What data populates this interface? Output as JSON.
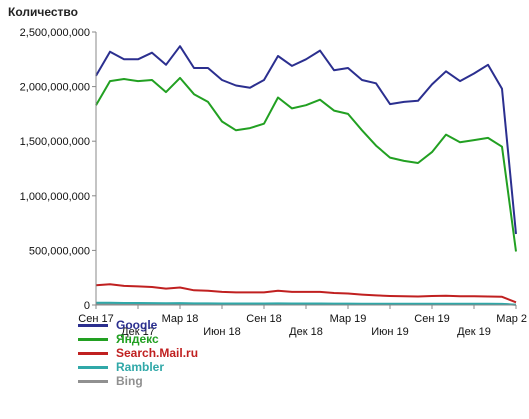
{
  "chart_data": {
    "type": "line",
    "ylabel": "Количество",
    "ylim": [
      0,
      2500000000
    ],
    "yticks": [
      {
        "value": 0,
        "label": "0"
      },
      {
        "value": 500000000,
        "label": "500,000,000"
      },
      {
        "value": 1000000000,
        "label": "1,000,000,000"
      },
      {
        "value": 1500000000,
        "label": "1,500,000,000"
      },
      {
        "value": 2000000000,
        "label": "2,000,000,000"
      },
      {
        "value": 2500000000,
        "label": "2,500,000,000"
      }
    ],
    "x": [
      "2017-09",
      "2017-10",
      "2017-11",
      "2017-12",
      "2018-01",
      "2018-02",
      "2018-03",
      "2018-04",
      "2018-05",
      "2018-06",
      "2018-07",
      "2018-08",
      "2018-09",
      "2018-10",
      "2018-11",
      "2018-12",
      "2019-01",
      "2019-02",
      "2019-03",
      "2019-04",
      "2019-05",
      "2019-06",
      "2019-07",
      "2019-08",
      "2019-09",
      "2019-10",
      "2019-11",
      "2019-12",
      "2020-01",
      "2020-02",
      "2020-03"
    ],
    "xticks": [
      {
        "index": 0,
        "label": "Сен 17",
        "row": 0
      },
      {
        "index": 3,
        "label": "Дек 17",
        "row": 1
      },
      {
        "index": 6,
        "label": "Мар 18",
        "row": 0
      },
      {
        "index": 9,
        "label": "Июн 18",
        "row": 1
      },
      {
        "index": 12,
        "label": "Сен 18",
        "row": 0
      },
      {
        "index": 15,
        "label": "Дек 18",
        "row": 1
      },
      {
        "index": 18,
        "label": "Мар 19",
        "row": 0
      },
      {
        "index": 21,
        "label": "Июн 19",
        "row": 1
      },
      {
        "index": 24,
        "label": "Сен 19",
        "row": 0
      },
      {
        "index": 27,
        "label": "Дек 19",
        "row": 1
      },
      {
        "index": 30,
        "label": "Мар 2",
        "row": 0
      }
    ],
    "series": [
      {
        "name": "Google",
        "color": "#2b2f8f",
        "values": [
          2100000000,
          2320000000,
          2250000000,
          2250000000,
          2310000000,
          2200000000,
          2370000000,
          2170000000,
          2170000000,
          2060000000,
          2010000000,
          1990000000,
          2060000000,
          2280000000,
          2190000000,
          2250000000,
          2330000000,
          2150000000,
          2170000000,
          2060000000,
          2030000000,
          1840000000,
          1860000000,
          1870000000,
          2020000000,
          2140000000,
          2050000000,
          2120000000,
          2200000000,
          1980000000,
          650000000
        ]
      },
      {
        "name": "Яндекс",
        "color": "#22a022",
        "values": [
          1830000000,
          2050000000,
          2070000000,
          2050000000,
          2060000000,
          1950000000,
          2080000000,
          1930000000,
          1860000000,
          1680000000,
          1600000000,
          1620000000,
          1660000000,
          1900000000,
          1800000000,
          1830000000,
          1880000000,
          1780000000,
          1750000000,
          1600000000,
          1460000000,
          1350000000,
          1320000000,
          1300000000,
          1400000000,
          1560000000,
          1490000000,
          1510000000,
          1530000000,
          1450000000,
          490000000
        ]
      },
      {
        "name": "Search.Mail.ru",
        "color": "#c02020",
        "values": [
          180000000,
          190000000,
          175000000,
          170000000,
          165000000,
          150000000,
          160000000,
          135000000,
          130000000,
          120000000,
          115000000,
          115000000,
          115000000,
          130000000,
          120000000,
          120000000,
          120000000,
          110000000,
          105000000,
          95000000,
          88000000,
          82000000,
          80000000,
          78000000,
          82000000,
          85000000,
          80000000,
          80000000,
          78000000,
          75000000,
          25000000
        ]
      },
      {
        "name": "Rambler",
        "color": "#30a8a8",
        "values": [
          20000000,
          20000000,
          18000000,
          18000000,
          17000000,
          16000000,
          17000000,
          15000000,
          15000000,
          14000000,
          14000000,
          14000000,
          14000000,
          15000000,
          14000000,
          14000000,
          14000000,
          13000000,
          13000000,
          12000000,
          12000000,
          11000000,
          11000000,
          11000000,
          11000000,
          12000000,
          11000000,
          11000000,
          11000000,
          10000000,
          3000000
        ]
      },
      {
        "name": "Bing",
        "color": "#909090",
        "values": [
          8000000,
          8000000,
          8000000,
          8000000,
          8000000,
          8000000,
          8000000,
          8000000,
          8000000,
          8000000,
          8000000,
          8000000,
          8000000,
          8000000,
          8000000,
          8000000,
          8000000,
          8000000,
          8000000,
          8000000,
          8000000,
          8000000,
          8000000,
          8000000,
          8000000,
          8000000,
          8000000,
          8000000,
          8000000,
          8000000,
          3000000
        ]
      }
    ],
    "grid": false,
    "legend_position": "bottom-left"
  }
}
